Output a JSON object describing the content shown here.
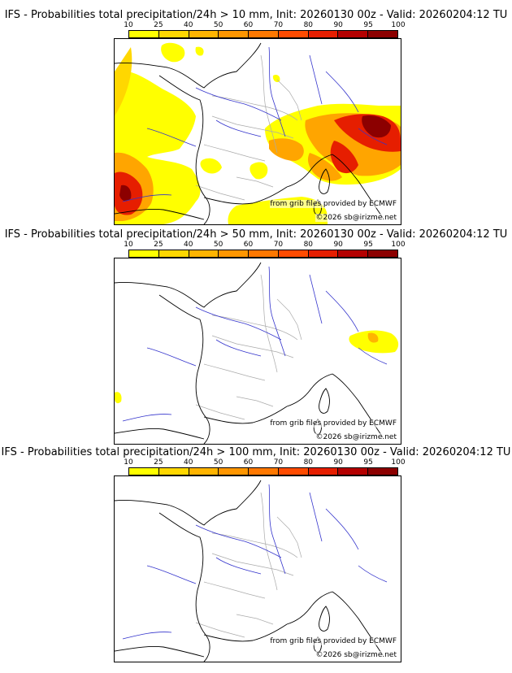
{
  "panels": [
    {
      "title": "IFS - Probabilities total precipitation/24h > 10 mm, Init: 20260130 00z - Valid: 20260204:12 TU"
    },
    {
      "title": "IFS - Probabilities total precipitation/24h > 50 mm, Init: 20260130 00z - Valid: 20260204:12 TU"
    },
    {
      "title": "IFS - Probabilities total precipitation/24h > 100 mm, Init: 20260130 00z - Valid: 20260204:12 TU"
    }
  ],
  "colorbar": {
    "ticks": [
      "10",
      "25",
      "40",
      "50",
      "60",
      "70",
      "80",
      "90",
      "95",
      "100"
    ],
    "colors": [
      "#ffff00",
      "#ffd700",
      "#ffb400",
      "#ff9600",
      "#ff7800",
      "#ff4b00",
      "#e61e00",
      "#b40000",
      "#8c0000"
    ]
  },
  "credits": {
    "source": "from grib files provided by ECMWF",
    "copyright": "©2026 sb@irizme.net"
  },
  "colors": {
    "coast": "#000000",
    "rivers": "#3333cc",
    "borders": "#aaaaaa"
  }
}
